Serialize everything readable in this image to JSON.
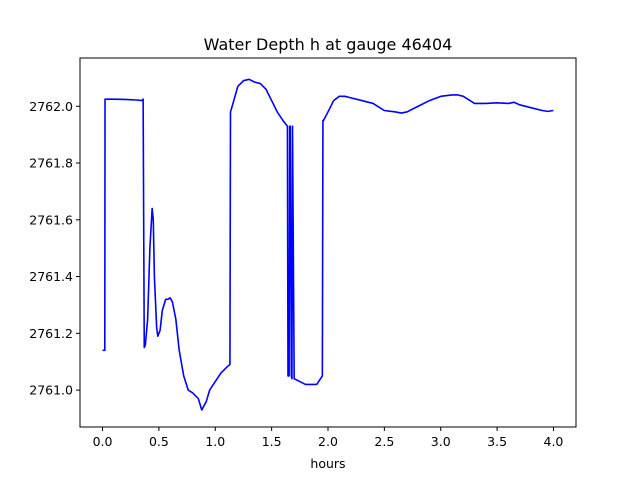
{
  "chart_data": {
    "type": "line",
    "title": "Water Depth h at gauge 46404",
    "xlabel": "hours",
    "ylabel": "",
    "xlim": [
      -0.2,
      4.2
    ],
    "ylim": [
      2760.87,
      2762.17
    ],
    "xticks": [
      0.0,
      0.5,
      1.0,
      1.5,
      2.0,
      2.5,
      3.0,
      3.5,
      4.0
    ],
    "xtick_labels": [
      "0.0",
      "0.5",
      "1.0",
      "1.5",
      "2.0",
      "2.5",
      "3.0",
      "3.5",
      "4.0"
    ],
    "yticks": [
      2761.0,
      2761.2,
      2761.4,
      2761.6,
      2761.8,
      2762.0
    ],
    "ytick_labels": [
      "2761.0",
      "2761.2",
      "2761.4",
      "2761.6",
      "2761.8",
      "2762.0"
    ],
    "grid": false,
    "series": [
      {
        "color": "#0000ff",
        "x": [
          0.0,
          0.02,
          0.022,
          0.1,
          0.2,
          0.3,
          0.35,
          0.36,
          0.37,
          0.38,
          0.4,
          0.42,
          0.44,
          0.45,
          0.46,
          0.48,
          0.49,
          0.51,
          0.53,
          0.56,
          0.58,
          0.6,
          0.62,
          0.65,
          0.68,
          0.72,
          0.76,
          0.8,
          0.85,
          0.88,
          0.92,
          0.95,
          1.0,
          1.05,
          1.1,
          1.13,
          1.135,
          1.15,
          1.2,
          1.25,
          1.3,
          1.35,
          1.4,
          1.45,
          1.5,
          1.55,
          1.6,
          1.64,
          1.645,
          1.655,
          1.66,
          1.665,
          1.675,
          1.68,
          1.685,
          1.7,
          1.75,
          1.8,
          1.85,
          1.9,
          1.95,
          1.955,
          1.96,
          2.0,
          2.05,
          2.1,
          2.15,
          2.2,
          2.3,
          2.4,
          2.5,
          2.6,
          2.65,
          2.7,
          2.8,
          2.9,
          3.0,
          3.1,
          3.15,
          3.2,
          3.3,
          3.4,
          3.5,
          3.6,
          3.65,
          3.7,
          3.8,
          3.9,
          3.95,
          4.0
        ],
        "y": [
          2761.14,
          2761.14,
          2762.025,
          2762.025,
          2762.024,
          2762.022,
          2762.02,
          2762.025,
          2761.15,
          2761.16,
          2761.25,
          2761.5,
          2761.64,
          2761.6,
          2761.4,
          2761.22,
          2761.19,
          2761.21,
          2761.28,
          2761.32,
          2761.32,
          2761.325,
          2761.31,
          2761.25,
          2761.14,
          2761.05,
          2761.0,
          2760.99,
          2760.97,
          2760.93,
          2760.96,
          2761.0,
          2761.03,
          2761.06,
          2761.08,
          2761.09,
          2761.98,
          2762.0,
          2762.07,
          2762.09,
          2762.095,
          2762.085,
          2762.08,
          2762.06,
          2762.02,
          2761.98,
          2761.95,
          2761.93,
          2761.05,
          2761.05,
          2761.93,
          2761.93,
          2761.05,
          2761.04,
          2761.93,
          2761.04,
          2761.03,
          2761.02,
          2761.02,
          2761.02,
          2761.05,
          2761.95,
          2761.95,
          2761.98,
          2762.02,
          2762.035,
          2762.035,
          2762.03,
          2762.02,
          2762.01,
          2761.985,
          2761.98,
          2761.976,
          2761.98,
          2762.0,
          2762.02,
          2762.035,
          2762.04,
          2762.04,
          2762.035,
          2762.01,
          2762.01,
          2762.012,
          2762.01,
          2762.014,
          2762.005,
          2761.995,
          2761.985,
          2761.982,
          2761.985
        ]
      }
    ]
  }
}
